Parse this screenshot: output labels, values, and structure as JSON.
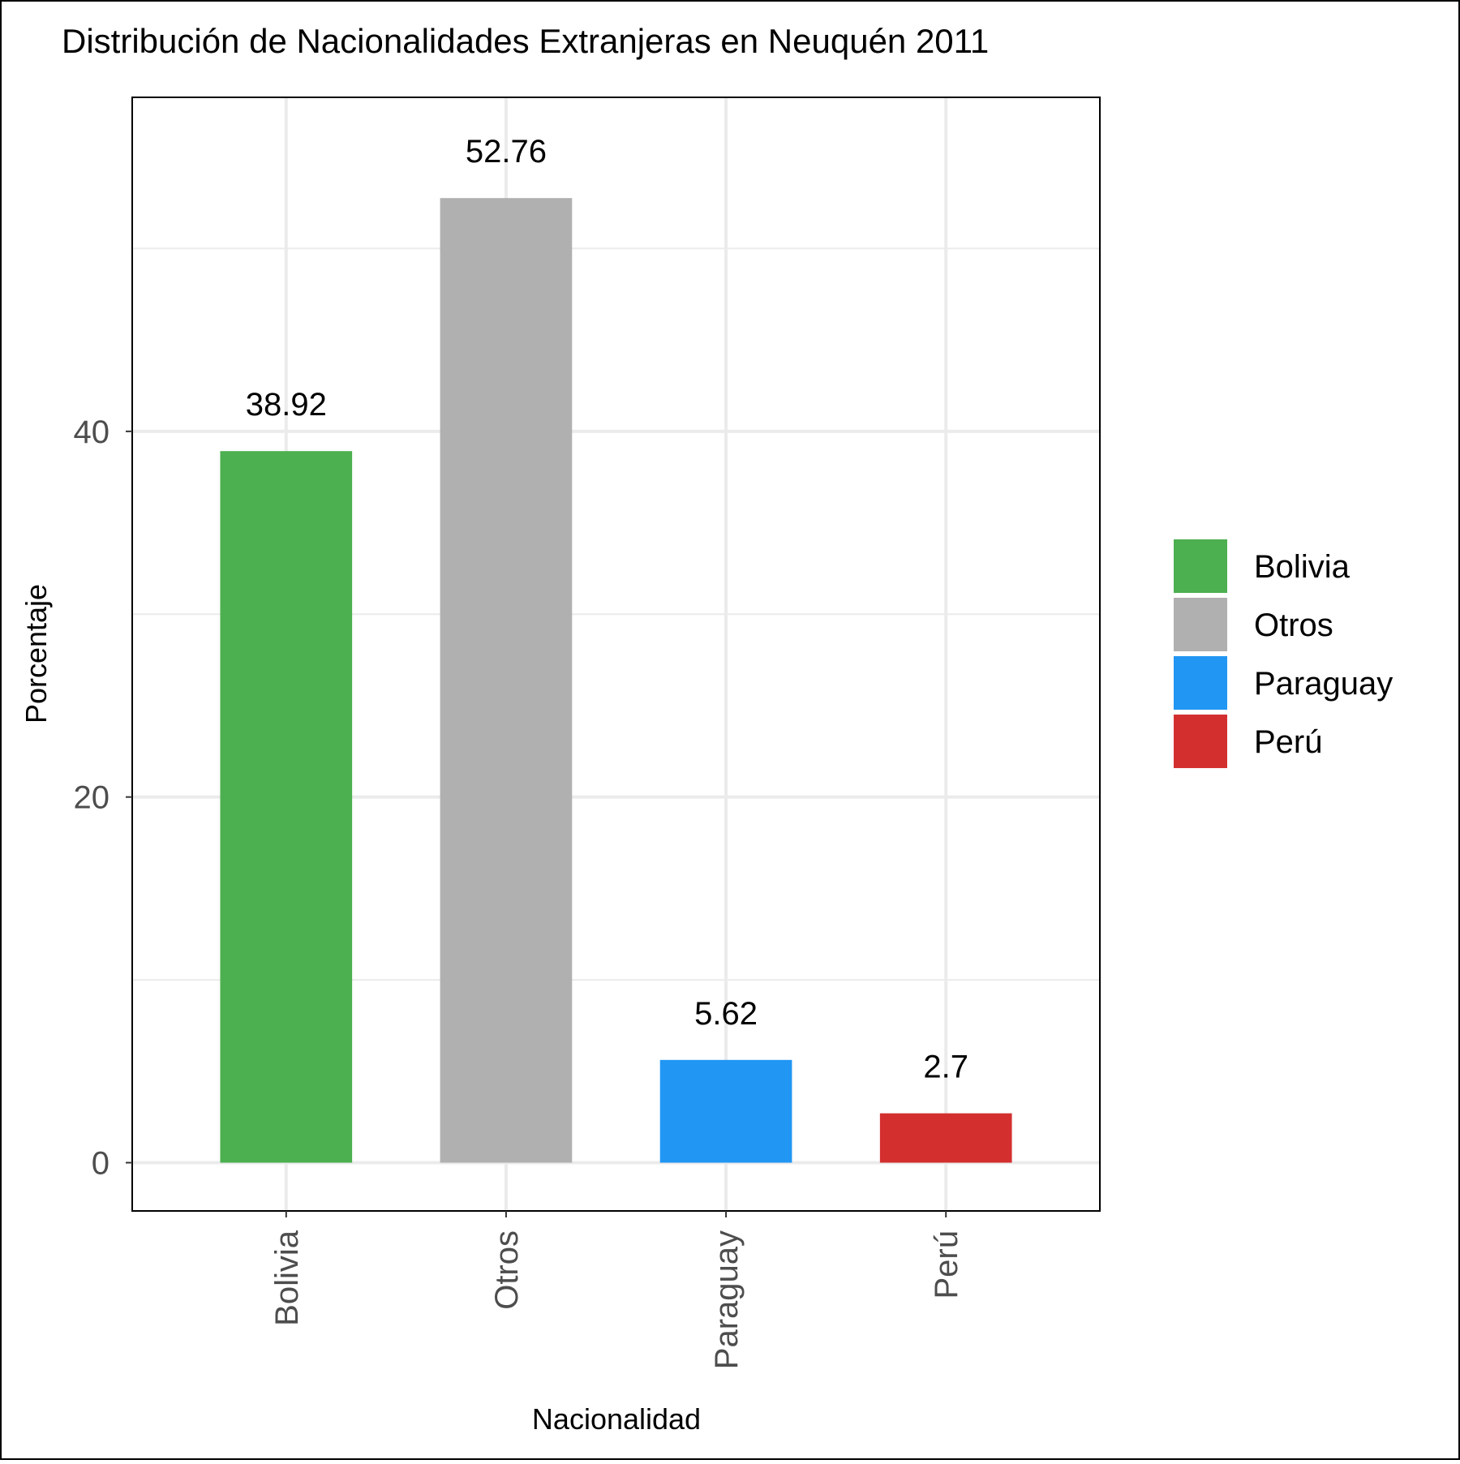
{
  "chart_data": {
    "type": "bar",
    "title": "Distribución de Nacionalidades Extranjeras en Neuquén 2011",
    "xlabel": "Nacionalidad",
    "ylabel": "Porcentaje",
    "categories": [
      "Bolivia",
      "Otros",
      "Paraguay",
      "Perú"
    ],
    "values": [
      38.92,
      52.76,
      5.62,
      2.7
    ],
    "data_labels": [
      "38.92",
      "52.76",
      "5.62",
      "2.7"
    ],
    "colors": [
      "#4caf50",
      "#b0b0b0",
      "#2196f3",
      "#d32f2f"
    ],
    "ylim": [
      -2.64,
      58.27
    ],
    "y_ticks": [
      0,
      20,
      40
    ],
    "y_tick_labels": [
      "0",
      "20",
      "40"
    ],
    "y_minor_ticks": [
      10,
      30,
      50
    ],
    "grid": true,
    "legend": {
      "position": "right",
      "entries": [
        "Bolivia",
        "Otros",
        "Paraguay",
        "Perú"
      ]
    }
  }
}
